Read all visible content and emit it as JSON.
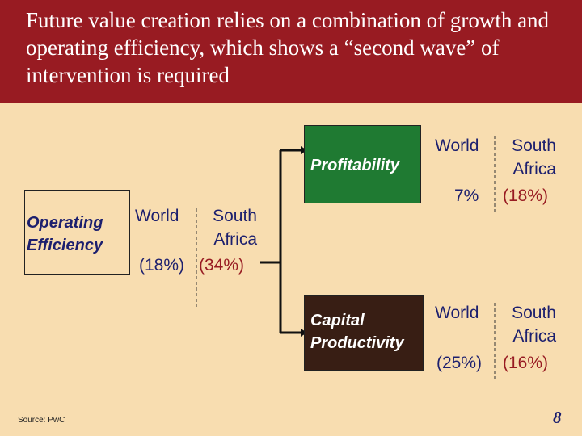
{
  "slide": {
    "title": "Future value creation relies on a combination of growth and operating efficiency, which shows a “second wave” of intervention is required",
    "source": "Source: PwC",
    "page_number": "8"
  },
  "boxes": {
    "operating_efficiency": {
      "label_line1": "Operating",
      "label_line2": "Efficiency"
    },
    "profitability": {
      "label": "Profitability"
    },
    "capital_productivity": {
      "label_line1": "Capital",
      "label_line2": "Productivity"
    }
  },
  "metrics": {
    "operating_efficiency": {
      "col1_header": "World",
      "col2_header_line1": "South",
      "col2_header_line2": "Africa",
      "world": "(18%)",
      "south_africa": "(34%)"
    },
    "profitability": {
      "col1_header": "World",
      "col2_header_line1": "South",
      "col2_header_line2": "Africa",
      "world": "7%",
      "south_africa": "(18%)"
    },
    "capital_productivity": {
      "col1_header": "World",
      "col2_header_line1": "South",
      "col2_header_line2": "Africa",
      "world": "(25%)",
      "south_africa": "(16%)"
    }
  },
  "colors": {
    "header_bg": "#981b22",
    "slide_bg": "#f8ddb0",
    "profitability_box": "#1f7a32",
    "capital_box": "#381e14",
    "world_text": "#1c1f6e",
    "south_africa_text": "#981b22"
  }
}
